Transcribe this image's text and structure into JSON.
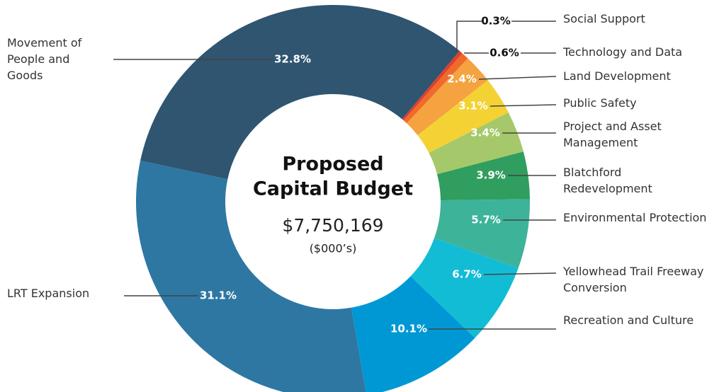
{
  "chart_data": {
    "type": "donut",
    "title": [
      "Proposed",
      "Capital Budget"
    ],
    "total": "$7,750,169",
    "subtitle": "($000’s)",
    "categories": [
      "Social Support",
      "Technology and Data",
      "Land Development",
      "Public Safety",
      "Project and Asset Management",
      "Blatchford Redevelopment",
      "Environmental Protection",
      "Yellowhead Trail Freeway Conversion",
      "Recreation and Culture",
      "LRT Expansion",
      "Movement of People and Goods"
    ],
    "values": [
      0.3,
      0.6,
      2.4,
      3.1,
      3.4,
      3.9,
      5.7,
      6.7,
      10.1,
      31.1,
      32.8
    ],
    "value_labels": [
      "0.3%",
      "0.6%",
      "2.4%",
      "3.1%",
      "3.4%",
      "3.9%",
      "5.7%",
      "6.7%",
      "10.1%",
      "31.1%",
      "32.8%"
    ],
    "colors": [
      "#e0402a",
      "#f06a2a",
      "#f4a340",
      "#f4d234",
      "#a5c96a",
      "#2f9e5f",
      "#3db39a",
      "#13bcd5",
      "#0098d4",
      "#2e77a3",
      "#2f5570"
    ]
  }
}
